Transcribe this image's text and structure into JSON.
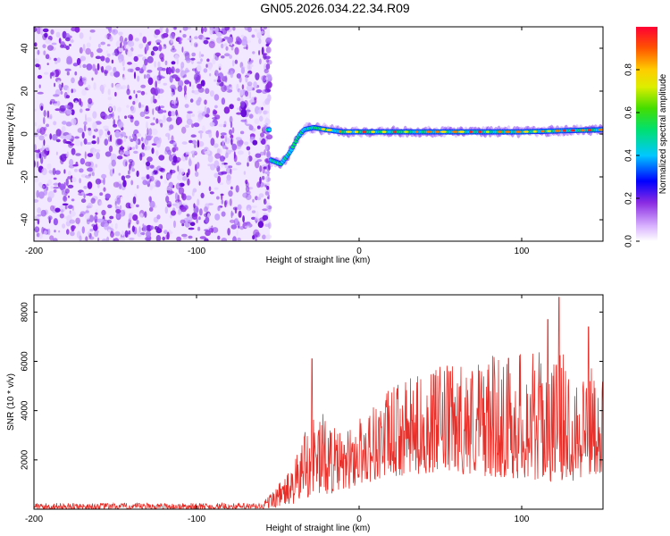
{
  "title": "GN05.2026.034.22.34.R09",
  "chart_data": [
    {
      "type": "heatmap",
      "xlabel": "Height of straight line (km)",
      "ylabel": "Frequency (Hz)",
      "xlim": [
        -200,
        150
      ],
      "ylim": [
        -50,
        50
      ],
      "xticks": [
        -200,
        -100,
        0,
        100
      ],
      "yticks": [
        -40,
        -20,
        0,
        20,
        40
      ],
      "noise_region_x": [
        -200,
        -55
      ],
      "trace": [
        {
          "x": -55,
          "y": -12
        },
        {
          "x": -48,
          "y": -14
        },
        {
          "x": -42,
          "y": -8
        },
        {
          "x": -38,
          "y": -2
        },
        {
          "x": -34,
          "y": 2
        },
        {
          "x": -28,
          "y": 3
        },
        {
          "x": -20,
          "y": 2
        },
        {
          "x": -10,
          "y": 1
        },
        {
          "x": 0,
          "y": 1
        },
        {
          "x": 50,
          "y": 1
        },
        {
          "x": 100,
          "y": 1
        },
        {
          "x": 150,
          "y": 2
        }
      ],
      "colorbar": {
        "label": "Normalized spectral amplitude",
        "range": [
          0.0,
          1.0
        ],
        "ticks": [
          "0.0",
          "0.2",
          "0.4",
          "0.6",
          "0.8"
        ]
      }
    },
    {
      "type": "line",
      "xlabel": "Height of straight line (km)",
      "ylabel": "SNR (10 * v/v)",
      "xlim": [
        -200,
        150
      ],
      "ylim": [
        0,
        8700
      ],
      "xticks": [
        -200,
        -100,
        0,
        100
      ],
      "yticks": [
        2000,
        4000,
        6000,
        8000
      ],
      "color": "#e8302a",
      "envelope": [
        {
          "x": -200,
          "lo": 0,
          "hi": 250
        },
        {
          "x": -60,
          "lo": 0,
          "hi": 250
        },
        {
          "x": -40,
          "lo": 200,
          "hi": 1800
        },
        {
          "x": -30,
          "lo": 500,
          "hi": 4500
        },
        {
          "x": -10,
          "lo": 700,
          "hi": 3000
        },
        {
          "x": 0,
          "lo": 1000,
          "hi": 3800
        },
        {
          "x": 20,
          "lo": 1300,
          "hi": 5000
        },
        {
          "x": 50,
          "lo": 1500,
          "hi": 5800
        },
        {
          "x": 100,
          "lo": 1200,
          "hi": 6500
        },
        {
          "x": 130,
          "lo": 1100,
          "hi": 6300
        },
        {
          "x": 150,
          "lo": 1500,
          "hi": 5500
        }
      ],
      "peaks": [
        {
          "x": -29,
          "y": 6100
        },
        {
          "x": 123,
          "y": 8600
        },
        {
          "x": 116,
          "y": 7700
        },
        {
          "x": 141,
          "y": 7400
        }
      ]
    }
  ]
}
